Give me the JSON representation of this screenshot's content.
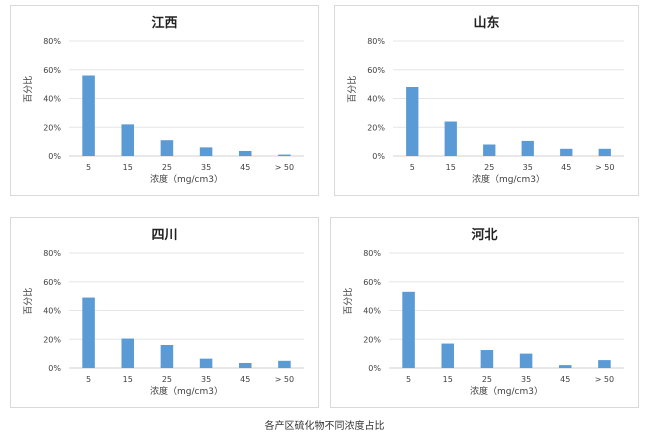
{
  "caption": "各产区硫化物不同浓度占比",
  "chart_data": [
    {
      "type": "bar",
      "title": "江西",
      "xlabel": "浓度（mg/cm3）",
      "ylabel": "百分比",
      "categories": [
        "5",
        "15",
        "25",
        "35",
        "45",
        "> 50"
      ],
      "values": [
        56,
        22,
        11,
        6,
        3.5,
        1
      ],
      "ylim": [
        0,
        80
      ],
      "yticks": [
        "0%",
        "20%",
        "40%",
        "60%",
        "80%"
      ],
      "grid": true,
      "bar_color": "#5b9bd5"
    },
    {
      "type": "bar",
      "title": "山东",
      "xlabel": "浓度（mg/cm3）",
      "ylabel": "百分比",
      "categories": [
        "5",
        "15",
        "25",
        "35",
        "45",
        "> 50"
      ],
      "values": [
        48,
        24,
        8,
        10.5,
        5,
        5
      ],
      "ylim": [
        0,
        80
      ],
      "yticks": [
        "0%",
        "20%",
        "40%",
        "60%",
        "80%"
      ],
      "grid": true,
      "bar_color": "#5b9bd5"
    },
    {
      "type": "bar",
      "title": "四川",
      "xlabel": "浓度（mg/cm3）",
      "ylabel": "百分比",
      "categories": [
        "5",
        "15",
        "25",
        "35",
        "45",
        "> 50"
      ],
      "values": [
        49,
        20.5,
        16,
        6.5,
        3.5,
        5
      ],
      "ylim": [
        0,
        80
      ],
      "yticks": [
        "0%",
        "20%",
        "40%",
        "60%",
        "80%"
      ],
      "grid": true,
      "bar_color": "#5b9bd5"
    },
    {
      "type": "bar",
      "title": "河北",
      "xlabel": "浓度（mg/cm3）",
      "ylabel": "百分比",
      "categories": [
        "5",
        "15",
        "25",
        "35",
        "45",
        "> 50"
      ],
      "values": [
        53,
        17,
        12.5,
        10,
        2,
        5.5
      ],
      "ylim": [
        0,
        80
      ],
      "yticks": [
        "0%",
        "20%",
        "40%",
        "60%",
        "80%"
      ],
      "grid": true,
      "bar_color": "#5b9bd5"
    }
  ]
}
